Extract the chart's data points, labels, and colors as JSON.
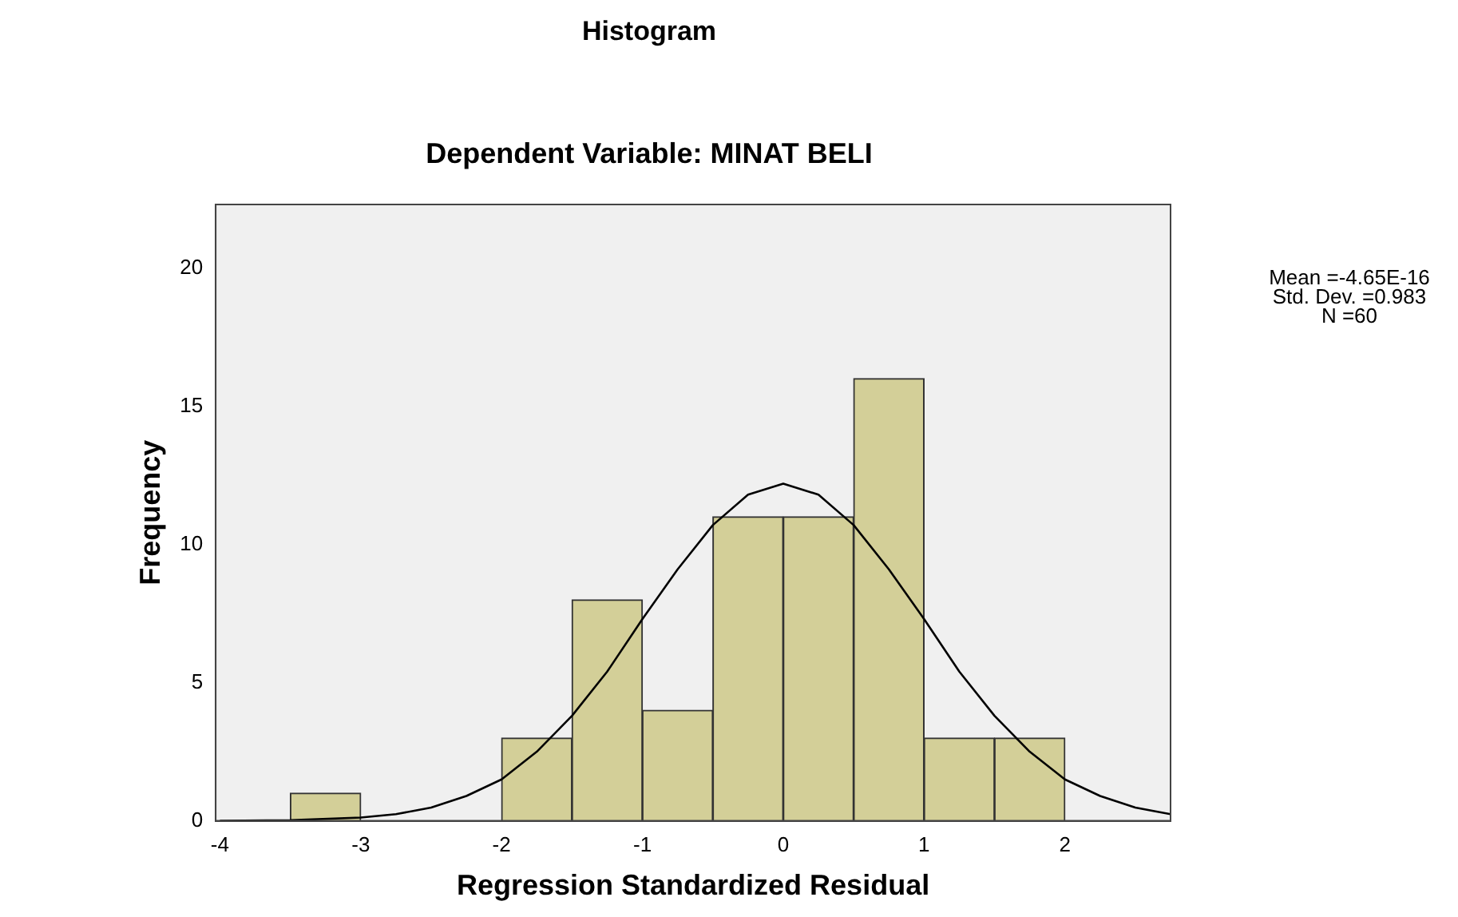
{
  "chart_data": {
    "type": "histogram",
    "title": "Histogram",
    "subtitle": "Dependent Variable: MINAT BELI",
    "xlabel": "Regression Standardized Residual",
    "ylabel": "Frequency",
    "bins": [
      -3.5,
      -3,
      -2.5,
      -2,
      -1.5,
      -1,
      -0.5,
      0,
      0.5,
      1,
      1.5,
      2
    ],
    "values": [
      1,
      0,
      0,
      3,
      8,
      4,
      11,
      11,
      16,
      3,
      3
    ],
    "color": "#d3cf98",
    "series": [
      {
        "type": "line",
        "color": "#000000",
        "x": [
          -4,
          -3.5,
          -3,
          -2.75,
          -2.5,
          -2.25,
          -2,
          -1.75,
          -1.5,
          -1.25,
          -1,
          -0.75,
          -0.5,
          -0.25,
          0,
          0.25,
          0.5,
          0.75,
          1,
          1.25,
          1.5,
          1.75,
          2,
          2.25,
          2.5,
          2.75
        ],
        "values": [
          0,
          0.02,
          0.12,
          0.24,
          0.48,
          0.9,
          1.5,
          2.5,
          3.8,
          5.4,
          7.3,
          9.1,
          10.7,
          11.8,
          12.2,
          11.8,
          10.7,
          9.1,
          7.3,
          5.4,
          3.8,
          2.5,
          1.5,
          0.9,
          0.48,
          0.24
        ]
      }
    ],
    "xlim": [
      -4.03,
      2.75
    ],
    "xticks": [
      -4,
      -3,
      -2,
      -1,
      0,
      1,
      2
    ],
    "ylim": [
      0,
      22.3
    ],
    "yticks": [
      0,
      5,
      10,
      15,
      20
    ],
    "grid": false,
    "legend": false,
    "marker": "none",
    "annotations": [
      "Mean =-4.65E-16",
      "Std. Dev. =0.983",
      "N =60"
    ]
  }
}
